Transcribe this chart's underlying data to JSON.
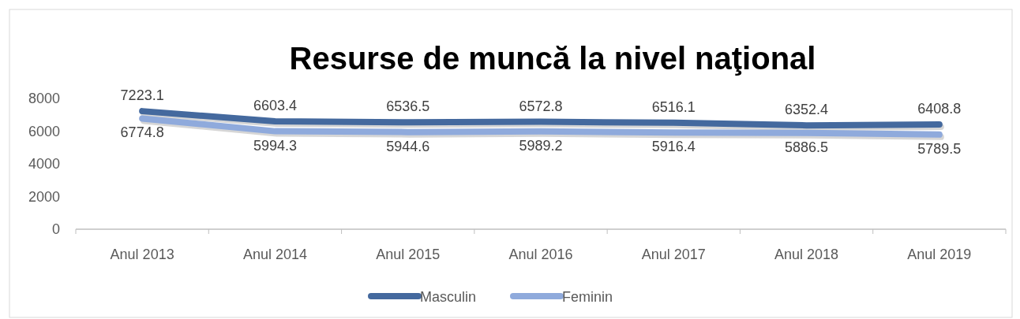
{
  "chart_data": {
    "type": "line",
    "title": "Resurse de muncă la nivel naţional",
    "categories": [
      "Anul 2013",
      "Anul 2014",
      "Anul 2015",
      "Anul 2016",
      "Anul 2017",
      "Anul 2018",
      "Anul 2019"
    ],
    "series": [
      {
        "name": "Masculin",
        "color": "#44699e",
        "values": [
          7223.1,
          6603.4,
          6536.5,
          6572.8,
          6516.1,
          6352.4,
          6408.8
        ]
      },
      {
        "name": "Feminin",
        "color": "#8faadc",
        "values": [
          6774.8,
          5994.3,
          5944.6,
          5989.2,
          5916.4,
          5886.5,
          5789.5
        ]
      }
    ],
    "ylim": [
      0,
      8000
    ],
    "yticks": [
      0,
      2000,
      4000,
      6000,
      8000
    ],
    "grid": false,
    "legend": "bottom",
    "data_labels": true,
    "marker": "none",
    "line_style": "solid"
  }
}
